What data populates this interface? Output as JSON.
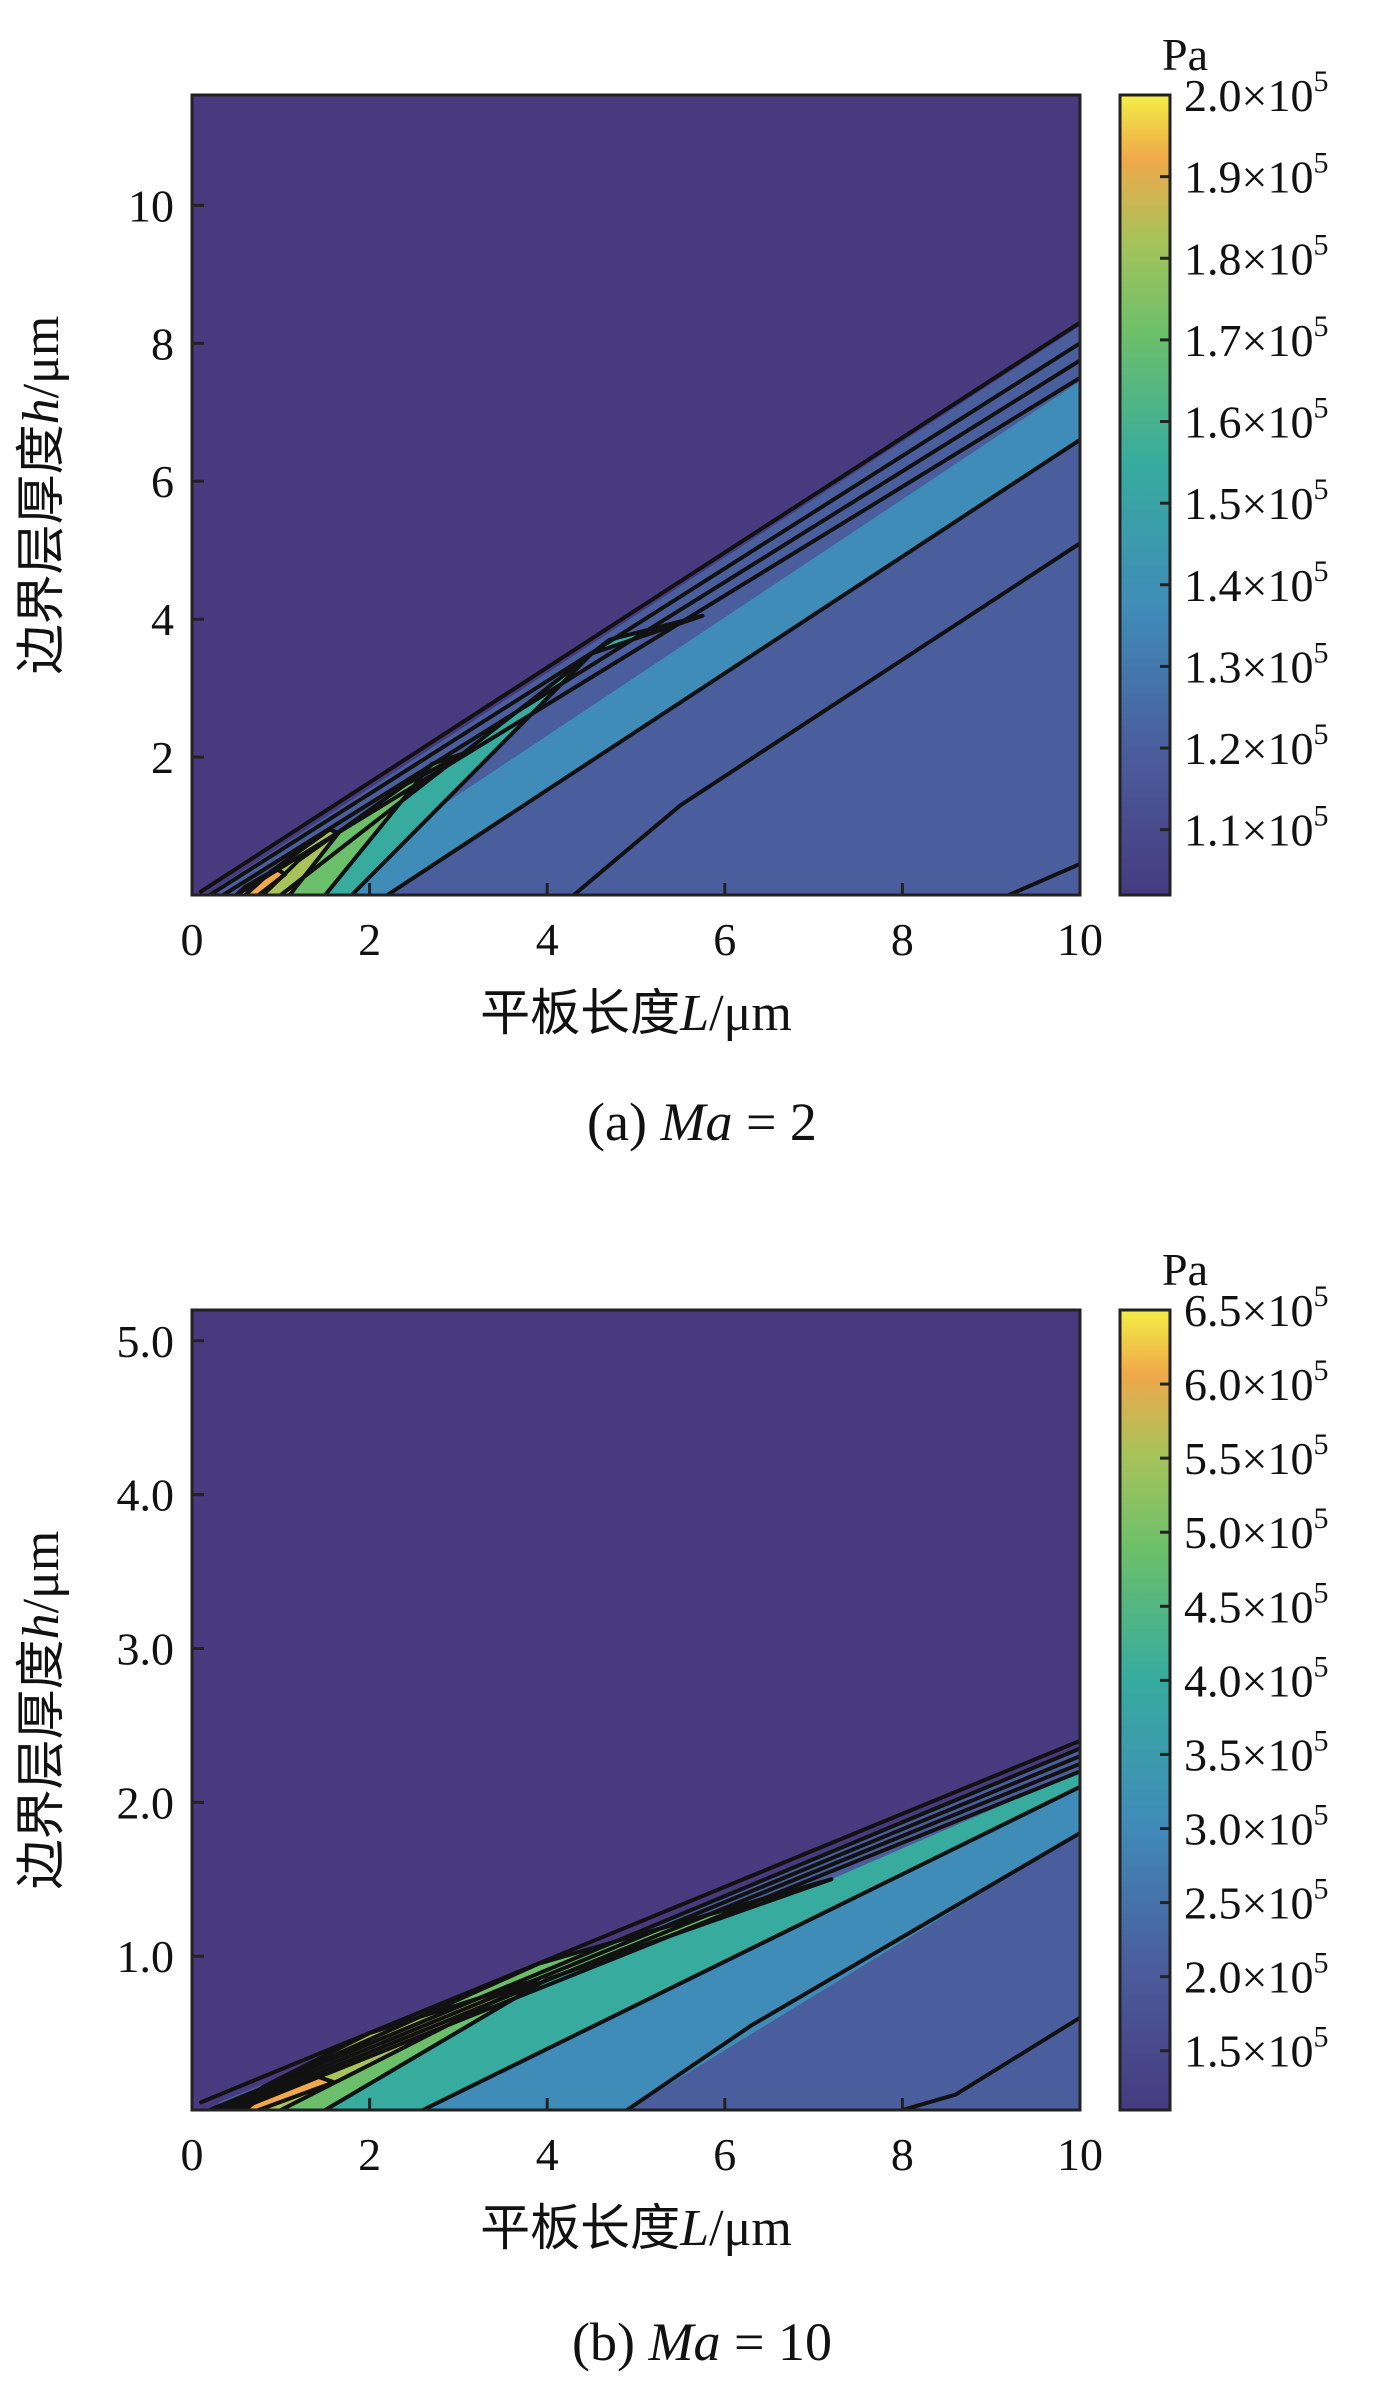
{
  "chart_data": [
    {
      "type": "contour",
      "caption_prefix": "(a) ",
      "caption_var": "Ma",
      "caption_rest": " = 2",
      "xlabel_cn": "平板长度",
      "xlabel_var": "L",
      "xlabel_unit": "/μm",
      "ylabel_cn": "边界层厚度",
      "ylabel_var": "h",
      "ylabel_unit": "/μm",
      "xlim": [
        0,
        10
      ],
      "ylim": [
        0,
        11.6
      ],
      "xticks": [
        {
          "v": 0,
          "t": "0"
        },
        {
          "v": 2,
          "t": "2"
        },
        {
          "v": 4,
          "t": "4"
        },
        {
          "v": 6,
          "t": "6"
        },
        {
          "v": 8,
          "t": "8"
        },
        {
          "v": 10,
          "t": "10"
        }
      ],
      "yticks": [
        {
          "v": 2,
          "t": "2"
        },
        {
          "v": 4,
          "t": "4"
        },
        {
          "v": 6,
          "t": "6"
        },
        {
          "v": 8,
          "t": "8"
        },
        {
          "v": 10,
          "t": "10"
        }
      ],
      "colorbar": {
        "unit": "Pa",
        "min": 1.02,
        "max": 2.0,
        "exp": "5",
        "ticks": [
          {
            "v": 2.0,
            "t": "2.0"
          },
          {
            "v": 1.9,
            "t": "1.9"
          },
          {
            "v": 1.8,
            "t": "1.8"
          },
          {
            "v": 1.7,
            "t": "1.7"
          },
          {
            "v": 1.6,
            "t": "1.6"
          },
          {
            "v": 1.5,
            "t": "1.5"
          },
          {
            "v": 1.4,
            "t": "1.4"
          },
          {
            "v": 1.3,
            "t": "1.3"
          },
          {
            "v": 1.2,
            "t": "1.2"
          },
          {
            "v": 1.1,
            "t": "1.1"
          }
        ]
      },
      "background_color": "#473a7f",
      "regions": [
        {
          "color": "#4a5d9c",
          "points": [
            [
              0.3,
              0
            ],
            [
              10,
              0
            ],
            [
              10,
              8.25
            ],
            [
              0.3,
              0.12
            ]
          ]
        },
        {
          "color": "#3f8cb9",
          "points": [
            [
              2.2,
              0
            ],
            [
              10,
              6.6
            ],
            [
              10,
              7.45
            ],
            [
              1.3,
              0
            ]
          ]
        },
        {
          "color": "#37ab9e",
          "points": [
            [
              1.8,
              0
            ],
            [
              4.5,
              3.5
            ],
            [
              5.7,
              4.05
            ],
            [
              4.7,
              3.7
            ],
            [
              2.0,
              1.0
            ],
            [
              1.0,
              0
            ]
          ]
        },
        {
          "color": "#6bbf6a",
          "points": [
            [
              1.5,
              0
            ],
            [
              2.7,
              1.9
            ],
            [
              3.0,
              2.05
            ],
            [
              2.4,
              1.6
            ],
            [
              1.2,
              0.5
            ],
            [
              0.8,
              0
            ]
          ]
        },
        {
          "color": "#a8c35a",
          "points": [
            [
              1.1,
              0
            ],
            [
              1.6,
              0.85
            ],
            [
              1.55,
              0.95
            ],
            [
              0.9,
              0.35
            ],
            [
              0.6,
              0
            ]
          ]
        },
        {
          "color": "#f0a84a",
          "points": [
            [
              0.75,
              0
            ],
            [
              1.0,
              0.28
            ],
            [
              0.95,
              0.38
            ],
            [
              0.6,
              0.12
            ],
            [
              0.5,
              0
            ]
          ]
        }
      ],
      "contour_lines": [
        [
          [
            0.1,
            0.05
          ],
          [
            10,
            8.3
          ]
        ],
        [
          [
            0.2,
            0
          ],
          [
            10,
            8.0
          ]
        ],
        [
          [
            0.35,
            0
          ],
          [
            10,
            7.75
          ]
        ],
        [
          [
            0.5,
            0
          ],
          [
            10,
            7.5
          ]
        ],
        [
          [
            2.2,
            0
          ],
          [
            10,
            6.6
          ]
        ],
        [
          [
            4.3,
            0
          ],
          [
            5.5,
            1.3
          ],
          [
            10,
            5.1
          ]
        ],
        [
          [
            9.2,
            0
          ],
          [
            10,
            0.45
          ]
        ],
        [
          [
            1.8,
            0
          ],
          [
            4.5,
            3.5
          ],
          [
            5.75,
            4.05
          ],
          [
            4.7,
            3.7
          ],
          [
            2.0,
            1.0
          ],
          [
            1.0,
            0
          ]
        ],
        [
          [
            1.5,
            0
          ],
          [
            2.7,
            1.9
          ],
          [
            3.05,
            2.05
          ],
          [
            2.4,
            1.6
          ],
          [
            1.2,
            0.5
          ],
          [
            0.8,
            0
          ]
        ],
        [
          [
            1.1,
            0
          ],
          [
            1.65,
            0.9
          ],
          [
            1.55,
            0.95
          ],
          [
            0.9,
            0.35
          ],
          [
            0.6,
            0
          ]
        ],
        [
          [
            0.75,
            0
          ],
          [
            1.05,
            0.3
          ],
          [
            0.95,
            0.38
          ],
          [
            0.6,
            0.12
          ],
          [
            0.5,
            0
          ]
        ]
      ]
    },
    {
      "type": "contour",
      "caption_prefix": "(b) ",
      "caption_var": "Ma",
      "caption_rest": " = 10",
      "xlabel_cn": "平板长度",
      "xlabel_var": "L",
      "xlabel_unit": "/μm",
      "ylabel_cn": "边界层厚度",
      "ylabel_var": "h",
      "ylabel_unit": "/μm",
      "xlim": [
        0,
        10
      ],
      "ylim": [
        0,
        5.2
      ],
      "xticks": [
        {
          "v": 0,
          "t": "0"
        },
        {
          "v": 2,
          "t": "2"
        },
        {
          "v": 4,
          "t": "4"
        },
        {
          "v": 6,
          "t": "6"
        },
        {
          "v": 8,
          "t": "8"
        },
        {
          "v": 10,
          "t": "10"
        }
      ],
      "yticks": [
        {
          "v": 1,
          "t": "1.0"
        },
        {
          "v": 2,
          "t": "2.0"
        },
        {
          "v": 3,
          "t": "3.0"
        },
        {
          "v": 4,
          "t": "4.0"
        },
        {
          "v": 5,
          "t": "5.0"
        }
      ],
      "colorbar": {
        "unit": "Pa",
        "min": 1.1,
        "max": 6.5,
        "exp": "5",
        "ticks": [
          {
            "v": 6.5,
            "t": "6.5"
          },
          {
            "v": 6.0,
            "t": "6.0"
          },
          {
            "v": 5.5,
            "t": "5.5"
          },
          {
            "v": 5.0,
            "t": "5.0"
          },
          {
            "v": 4.5,
            "t": "4.5"
          },
          {
            "v": 4.0,
            "t": "4.0"
          },
          {
            "v": 3.5,
            "t": "3.5"
          },
          {
            "v": 3.0,
            "t": "3.0"
          },
          {
            "v": 2.5,
            "t": "2.5"
          },
          {
            "v": 2.0,
            "t": "2.0"
          },
          {
            "v": 1.5,
            "t": "1.5"
          }
        ]
      },
      "background_color": "#473a7f",
      "regions": [
        {
          "color": "#4a5d9c",
          "points": [
            [
              0.3,
              0
            ],
            [
              10,
              0
            ],
            [
              10,
              2.35
            ],
            [
              0.3,
              0.05
            ]
          ]
        },
        {
          "color": "#3f8cb9",
          "points": [
            [
              4.9,
              0
            ],
            [
              10,
              1.8
            ],
            [
              10,
              2.1
            ],
            [
              2.6,
              0
            ]
          ]
        },
        {
          "color": "#37ab9e",
          "points": [
            [
              2.6,
              0
            ],
            [
              10,
              2.1
            ],
            [
              10,
              2.2
            ],
            [
              7.2,
              1.5
            ],
            [
              4.0,
              0.85
            ],
            [
              1.5,
              0
            ]
          ]
        },
        {
          "color": "#6bbf6a",
          "points": [
            [
              1.5,
              0
            ],
            [
              4.0,
              0.85
            ],
            [
              7.2,
              1.5
            ],
            [
              3.9,
              0.95
            ],
            [
              1.0,
              0.2
            ],
            [
              0.6,
              0
            ]
          ]
        },
        {
          "color": "#a8c35a",
          "points": [
            [
              1.0,
              0
            ],
            [
              3.9,
              0.85
            ],
            [
              2.0,
              0.5
            ],
            [
              0.8,
              0.15
            ],
            [
              0.5,
              0
            ]
          ]
        },
        {
          "color": "#f0a84a",
          "points": [
            [
              0.75,
              0
            ],
            [
              1.6,
              0.18
            ],
            [
              1.3,
              0.24
            ],
            [
              0.6,
              0.08
            ],
            [
              0.55,
              0
            ]
          ]
        }
      ],
      "contour_lines": [
        [
          [
            0.1,
            0.05
          ],
          [
            10,
            2.4
          ]
        ],
        [
          [
            0.2,
            0
          ],
          [
            10,
            2.35
          ]
        ],
        [
          [
            0.3,
            0
          ],
          [
            10,
            2.3
          ]
        ],
        [
          [
            0.4,
            0
          ],
          [
            10,
            2.25
          ]
        ],
        [
          [
            0.5,
            0
          ],
          [
            10,
            2.2
          ]
        ],
        [
          [
            2.6,
            0
          ],
          [
            10,
            2.1
          ]
        ],
        [
          [
            4.9,
            0
          ],
          [
            6.3,
            0.55
          ],
          [
            10,
            1.8
          ]
        ],
        [
          [
            8.0,
            0
          ],
          [
            8.6,
            0.1
          ],
          [
            10,
            0.6
          ]
        ],
        [
          [
            1.5,
            0
          ],
          [
            4.0,
            0.85
          ],
          [
            7.2,
            1.5
          ],
          [
            3.9,
            0.95
          ],
          [
            1.0,
            0.2
          ],
          [
            0.6,
            0
          ]
        ],
        [
          [
            1.0,
            0
          ],
          [
            3.9,
            0.85
          ],
          [
            2.0,
            0.5
          ],
          [
            0.8,
            0.15
          ],
          [
            0.5,
            0
          ]
        ],
        [
          [
            0.75,
            0
          ],
          [
            1.6,
            0.18
          ],
          [
            1.3,
            0.24
          ],
          [
            0.6,
            0.08
          ],
          [
            0.55,
            0
          ]
        ]
      ]
    }
  ]
}
